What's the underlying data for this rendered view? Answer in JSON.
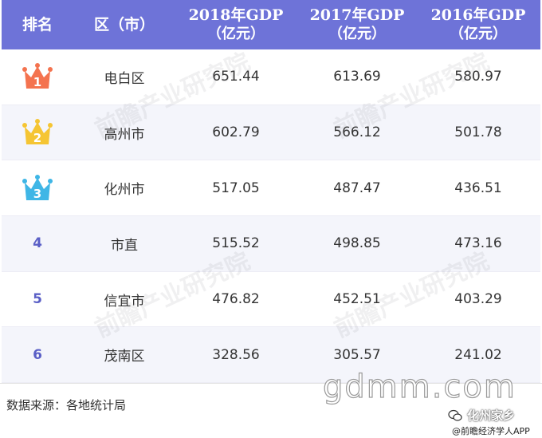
{
  "table": {
    "headers": {
      "rank": "排名",
      "region": "区（市）",
      "y2018_line1": "2018年GDP",
      "y2018_line2": "（亿元）",
      "y2017_line1": "2017年GDP",
      "y2017_line2": "（亿元）",
      "y2016_line1": "2016年GDP",
      "y2016_line2": "（亿元）"
    },
    "rows": [
      {
        "rank": "1",
        "region": "电白区",
        "gdp2018": "651.44",
        "gdp2017": "613.69",
        "gdp2016": "580.97",
        "crown_color": "#f4734f"
      },
      {
        "rank": "2",
        "region": "高州市",
        "gdp2018": "602.79",
        "gdp2017": "566.12",
        "gdp2016": "501.78",
        "crown_color": "#f5c533"
      },
      {
        "rank": "3",
        "region": "化州市",
        "gdp2018": "517.05",
        "gdp2017": "487.47",
        "gdp2016": "436.51",
        "crown_color": "#3fb6e6"
      },
      {
        "rank": "4",
        "region": "市直",
        "gdp2018": "515.52",
        "gdp2017": "498.85",
        "gdp2016": "473.16"
      },
      {
        "rank": "5",
        "region": "信宜市",
        "gdp2018": "476.82",
        "gdp2017": "452.51",
        "gdp2016": "403.29"
      },
      {
        "rank": "6",
        "region": "茂南区",
        "gdp2018": "328.56",
        "gdp2017": "305.57",
        "gdp2016": "241.02"
      }
    ]
  },
  "watermarks": {
    "brand": "前瞻产业研究院"
  },
  "footer": {
    "source": "数据来源：各地统计局",
    "site": "gdmm.com",
    "account": "化州家乡",
    "app": "@前瞻经济学人APP"
  },
  "colors": {
    "header_bg": "#6e73d8",
    "rank_text": "#5a5fc6",
    "alt_row_bg": "#f4f5fb"
  }
}
